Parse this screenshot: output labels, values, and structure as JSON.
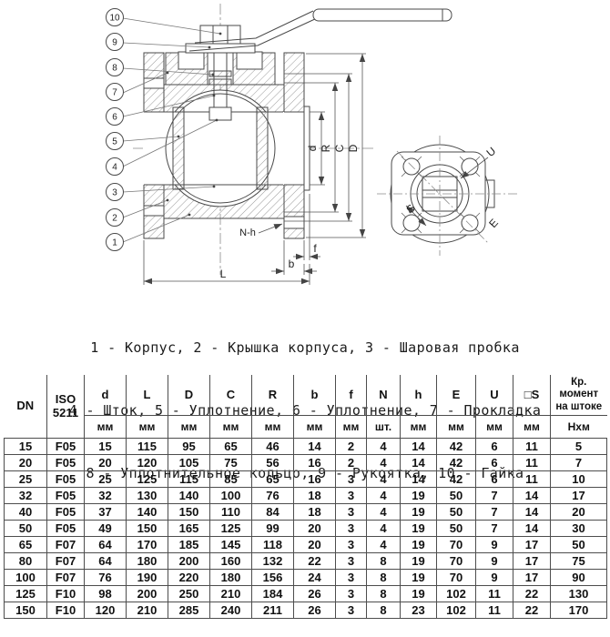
{
  "page": {
    "background": "#ffffff",
    "line_color": "#4a4a4a",
    "text_color": "#1c1c1c"
  },
  "diagram": {
    "callouts": [
      "10",
      "9",
      "8",
      "7",
      "6",
      "5",
      "4",
      "3",
      "2",
      "1"
    ],
    "dims": {
      "d": "d",
      "R": "R",
      "C": "C",
      "D": "D",
      "L": "L",
      "b": "b",
      "f": "f",
      "nh": "N-h",
      "U": "U",
      "S": "S",
      "E": "E"
    }
  },
  "legend": {
    "line1": "1 - Корпус, 2 - Крышка корпуса, 3 - Шаровая пробка",
    "line2": "4 - Шток, 5 - Уплотнение, 6 - Уплотнение, 7 - Прокладка",
    "line3": "8 - Уплотнительное кольцо, 9 - Рукоятка, 10 - Гайка"
  },
  "table": {
    "columns": [
      {
        "label": "DN",
        "unit": ""
      },
      {
        "label": "ISO 5211",
        "unit": ""
      },
      {
        "label": "d",
        "unit": "мм"
      },
      {
        "label": "L",
        "unit": "мм"
      },
      {
        "label": "D",
        "unit": "мм"
      },
      {
        "label": "C",
        "unit": "мм"
      },
      {
        "label": "R",
        "unit": "мм"
      },
      {
        "label": "b",
        "unit": "мм"
      },
      {
        "label": "f",
        "unit": "мм"
      },
      {
        "label": "N",
        "unit": "шт."
      },
      {
        "label": "h",
        "unit": "мм"
      },
      {
        "label": "E",
        "unit": "мм"
      },
      {
        "label": "U",
        "unit": "мм"
      },
      {
        "label": "□S",
        "unit": "мм"
      },
      {
        "label": "Кр. момент на штоке",
        "unit": "Нхм"
      }
    ],
    "rows": [
      [
        "15",
        "F05",
        "15",
        "115",
        "95",
        "65",
        "46",
        "14",
        "2",
        "4",
        "14",
        "42",
        "6",
        "11",
        "5"
      ],
      [
        "20",
        "F05",
        "20",
        "120",
        "105",
        "75",
        "56",
        "16",
        "2",
        "4",
        "14",
        "42",
        "6",
        "11",
        "7"
      ],
      [
        "25",
        "F05",
        "25",
        "125",
        "115",
        "85",
        "65",
        "16",
        "3",
        "4",
        "14",
        "42",
        "6",
        "11",
        "10"
      ],
      [
        "32",
        "F05",
        "32",
        "130",
        "140",
        "100",
        "76",
        "18",
        "3",
        "4",
        "19",
        "50",
        "7",
        "14",
        "17"
      ],
      [
        "40",
        "F05",
        "37",
        "140",
        "150",
        "110",
        "84",
        "18",
        "3",
        "4",
        "19",
        "50",
        "7",
        "14",
        "20"
      ],
      [
        "50",
        "F05",
        "49",
        "150",
        "165",
        "125",
        "99",
        "20",
        "3",
        "4",
        "19",
        "50",
        "7",
        "14",
        "30"
      ],
      [
        "65",
        "F07",
        "64",
        "170",
        "185",
        "145",
        "118",
        "20",
        "3",
        "4",
        "19",
        "70",
        "9",
        "17",
        "50"
      ],
      [
        "80",
        "F07",
        "64",
        "180",
        "200",
        "160",
        "132",
        "22",
        "3",
        "8",
        "19",
        "70",
        "9",
        "17",
        "75"
      ],
      [
        "100",
        "F07",
        "76",
        "190",
        "220",
        "180",
        "156",
        "24",
        "3",
        "8",
        "19",
        "70",
        "9",
        "17",
        "90"
      ],
      [
        "125",
        "F10",
        "98",
        "200",
        "250",
        "210",
        "184",
        "26",
        "3",
        "8",
        "19",
        "102",
        "11",
        "22",
        "130"
      ],
      [
        "150",
        "F10",
        "120",
        "210",
        "285",
        "240",
        "211",
        "26",
        "3",
        "8",
        "23",
        "102",
        "11",
        "22",
        "170"
      ]
    ]
  }
}
